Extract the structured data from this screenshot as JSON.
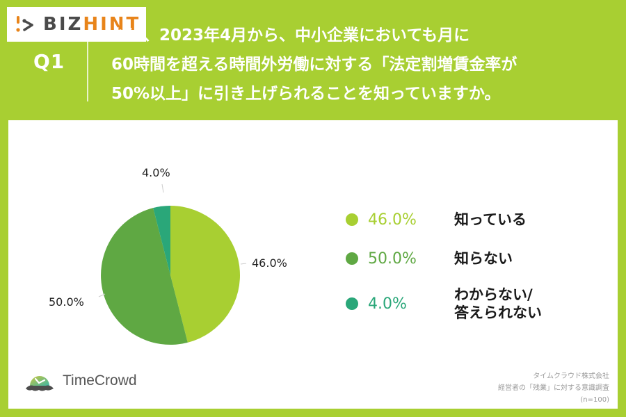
{
  "logo": {
    "mark_icon": "bizhint-play-icon",
    "part1": "BIZ",
    "part2": "HINT",
    "colors": {
      "part1": "#4a4a4a",
      "part2": "#e8841a"
    }
  },
  "question": {
    "label": "Q1",
    "lines": [
      "たは、2023年4月から、中小企業においても月に",
      "60時間を超える時間外労働に対する「法定割増賃金率が",
      "50%以上」に引き上げられることを知っていますか。"
    ]
  },
  "colors": {
    "background": "#a8cf32",
    "slice_know": "#a8cf32",
    "slice_dont_know": "#5fa843",
    "slice_unsure": "#2aa779"
  },
  "chart_data": {
    "type": "pie",
    "title": "たは、2023年4月から、中小企業においても月に60時間を超える時間外労働に対する「法定割増賃金率が50%以上」に引き上げられることを知っていますか。",
    "categories": [
      "知っている",
      "知らない",
      "わからない/答えられない"
    ],
    "values": [
      46.0,
      50.0,
      4.0
    ],
    "unit": "%",
    "colors": [
      "#a8cf32",
      "#5fa843",
      "#2aa779"
    ],
    "start_angle": "12 o'clock, clockwise",
    "data_labels": [
      "46.0%",
      "50.0%",
      "4.0%"
    ],
    "legend_position": "right",
    "sample_size": "n=100"
  },
  "pie_labels": {
    "know": "46.0%",
    "dont_know": "50.0%",
    "unsure": "4.0%"
  },
  "legend": [
    {
      "pct": "46.0%",
      "label": "知っている",
      "color": "#a8cf32"
    },
    {
      "pct": "50.0%",
      "label": "知らない",
      "color": "#5fa843"
    },
    {
      "pct": "4.0%",
      "label_line1": "わからない/",
      "label_line2": "答えられない",
      "color": "#2aa779"
    }
  ],
  "brand": {
    "icon": "timecrowd-clock-icon",
    "name": "TimeCrowd"
  },
  "source": {
    "line1": "タイムクラウド株式会社",
    "line2": "経営者の「残業」に対する意識調査",
    "line3": "(n=100)"
  }
}
